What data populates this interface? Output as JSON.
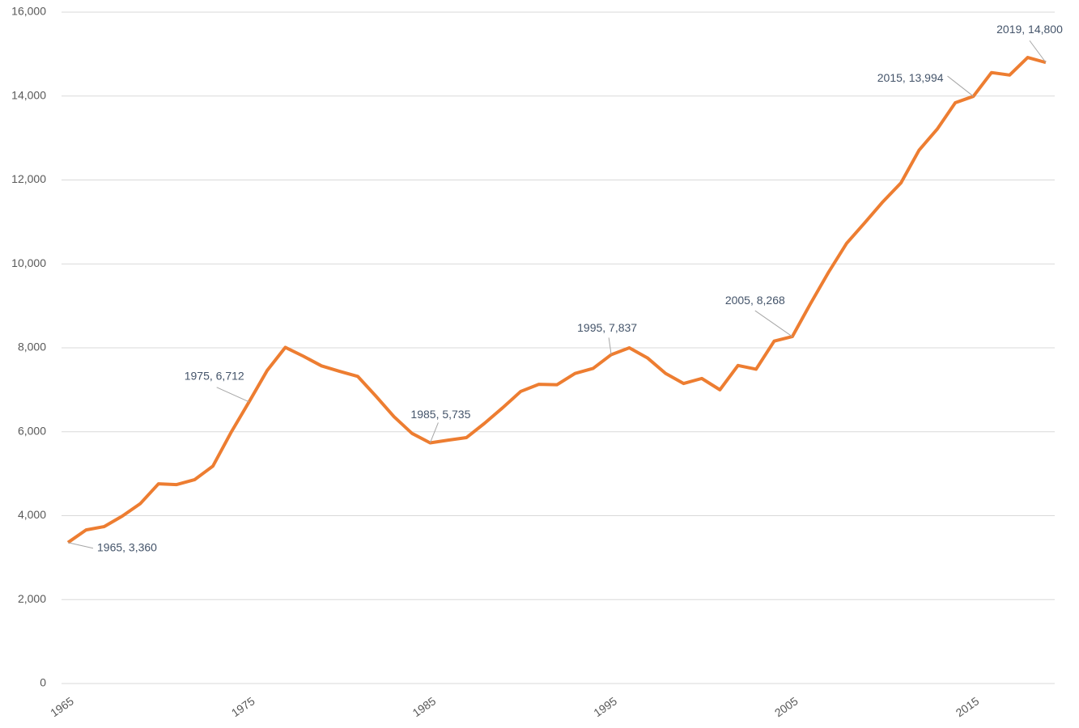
{
  "chart_data": {
    "type": "line",
    "x": [
      1965,
      1966,
      1967,
      1968,
      1969,
      1970,
      1971,
      1972,
      1973,
      1974,
      1975,
      1976,
      1977,
      1978,
      1979,
      1980,
      1981,
      1982,
      1983,
      1984,
      1985,
      1986,
      1987,
      1988,
      1989,
      1990,
      1991,
      1992,
      1993,
      1994,
      1995,
      1996,
      1997,
      1998,
      1999,
      2000,
      2001,
      2002,
      2003,
      2004,
      2005,
      2006,
      2007,
      2008,
      2009,
      2010,
      2011,
      2012,
      2013,
      2014,
      2015,
      2016,
      2017,
      2018,
      2019
    ],
    "series": [
      {
        "name": "Series",
        "color": "#ed7d31",
        "values": [
          3360,
          3660,
          3740,
          3990,
          4290,
          4760,
          4740,
          4860,
          5180,
          5980,
          6712,
          7460,
          8010,
          7800,
          7570,
          7440,
          7320,
          6850,
          6360,
          5960,
          5735,
          5800,
          5860,
          6200,
          6570,
          6960,
          7130,
          7120,
          7390,
          7510,
          7837,
          8000,
          7760,
          7390,
          7150,
          7270,
          7000,
          7580,
          7490,
          8160,
          8268,
          9050,
          9800,
          10490,
          10980,
          11480,
          11930,
          12710,
          13210,
          13840,
          13994,
          14560,
          14500,
          14920,
          14800
        ],
        "value_labels": [
          "1965, 3,360",
          null,
          null,
          null,
          null,
          null,
          null,
          null,
          null,
          null,
          "1975, 6,712",
          null,
          null,
          null,
          null,
          null,
          null,
          null,
          null,
          null,
          "1985, 5,735",
          null,
          null,
          null,
          null,
          null,
          null,
          null,
          null,
          null,
          "1995, 7,837",
          null,
          null,
          null,
          null,
          null,
          null,
          null,
          null,
          null,
          "2005, 8,268",
          null,
          null,
          null,
          null,
          null,
          null,
          null,
          null,
          null,
          "2015, 13,994",
          null,
          null,
          null,
          "2019, 14,800"
        ]
      }
    ],
    "xlim": [
      1965,
      2019
    ],
    "xticks": [
      1965,
      1975,
      1985,
      1995,
      2005,
      2015
    ],
    "ylim": [
      0,
      16000
    ],
    "yticks": [
      0,
      {
        "value": 2000,
        "label": "2,000"
      },
      {
        "value": 4000,
        "label": "4,000"
      },
      {
        "value": 6000,
        "label": "6,000"
      },
      {
        "value": 8000,
        "label": "8,000"
      },
      {
        "value": 10000,
        "label": "10,000"
      },
      {
        "value": 12000,
        "label": "12,000"
      },
      {
        "value": 14000,
        "label": "14,000"
      },
      {
        "value": 16000,
        "label": "16,000"
      }
    ],
    "grid": true
  }
}
